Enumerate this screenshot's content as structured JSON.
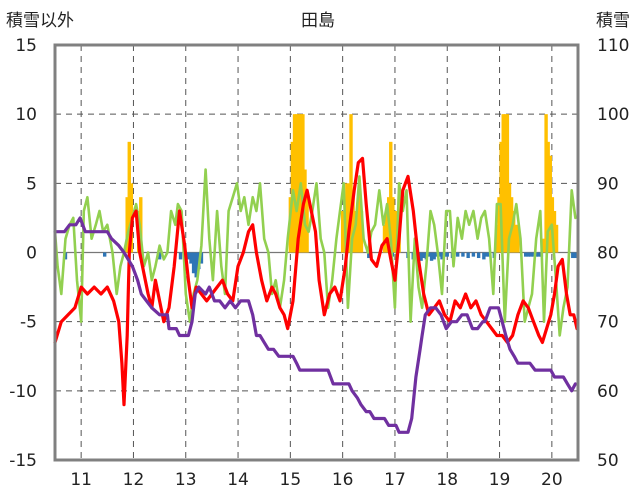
{
  "chart_data": {
    "type": "line",
    "title": "田島",
    "left_axis_title": "積雪以外",
    "right_axis_title": "積雪",
    "xlabel": "",
    "x_tick_labels": [
      "11",
      "12",
      "13",
      "14",
      "15",
      "16",
      "17",
      "18",
      "19",
      "20"
    ],
    "xlim": [
      10.5,
      20.5
    ],
    "left_ylim": [
      -15,
      15
    ],
    "left_yticks": [
      "15",
      "10",
      "5",
      "0",
      "-5",
      "-10",
      "-15"
    ],
    "right_ylim": [
      50,
      110
    ],
    "right_yticks": [
      "110",
      "100",
      "90",
      "80",
      "70",
      "60",
      "50"
    ],
    "grid": true,
    "legend": "none",
    "colors": {
      "snow_depth": "#7030a0",
      "temperature": "#ff0000",
      "humidity_like": "#92d050",
      "snowfall": "#ffc000",
      "precip": "#2e75b6",
      "frame": "#808080",
      "grid": "#555555"
    },
    "series": [
      {
        "key": "temperature",
        "axis": "left",
        "color": "#ff0000",
        "x": [
          10.5,
          10.62,
          10.75,
          10.88,
          11.0,
          11.12,
          11.25,
          11.38,
          11.5,
          11.62,
          11.72,
          11.78,
          11.82,
          11.88,
          11.92,
          11.98,
          12.05,
          12.12,
          12.2,
          12.28,
          12.35,
          12.42,
          12.5,
          12.58,
          12.68,
          12.78,
          12.88,
          12.98,
          13.05,
          13.12,
          13.2,
          13.3,
          13.4,
          13.5,
          13.6,
          13.7,
          13.8,
          13.9,
          14.0,
          14.1,
          14.2,
          14.28,
          14.35,
          14.45,
          14.55,
          14.65,
          14.72,
          14.8,
          14.88,
          14.95,
          15.05,
          15.15,
          15.25,
          15.32,
          15.4,
          15.48,
          15.55,
          15.65,
          15.75,
          15.85,
          15.95,
          16.05,
          16.12,
          16.22,
          16.3,
          16.38,
          16.45,
          16.55,
          16.65,
          16.75,
          16.85,
          16.92,
          17.0,
          17.08,
          17.15,
          17.25,
          17.35,
          17.45,
          17.55,
          17.65,
          17.75,
          17.85,
          17.95,
          18.05,
          18.15,
          18.25,
          18.35,
          18.45,
          18.55,
          18.65,
          18.75,
          18.85,
          18.95,
          19.05,
          19.15,
          19.25,
          19.35,
          19.45,
          19.55,
          19.65,
          19.75,
          19.82,
          19.9,
          19.98,
          20.05,
          20.12,
          20.2,
          20.28,
          20.35,
          20.42,
          20.48
        ],
        "values": [
          -6.5,
          -5.0,
          -4.5,
          -4.0,
          -2.5,
          -3.0,
          -2.5,
          -3.0,
          -2.5,
          -3.5,
          -5.0,
          -8.0,
          -11.0,
          -6.0,
          0.0,
          2.5,
          3.0,
          0.0,
          -1.5,
          -3.0,
          -4.0,
          -2.0,
          -3.5,
          -5.0,
          -4.0,
          -1.0,
          3.0,
          0.5,
          -2.0,
          -4.0,
          -2.5,
          -3.0,
          -3.5,
          -3.0,
          -2.5,
          -2.0,
          -3.0,
          -3.5,
          -1.0,
          0.0,
          1.5,
          2.0,
          0.0,
          -2.0,
          -3.5,
          -2.5,
          -3.0,
          -4.0,
          -4.5,
          -5.5,
          -3.5,
          1.0,
          3.5,
          4.5,
          3.0,
          1.5,
          -2.0,
          -4.5,
          -3.0,
          -2.5,
          -3.5,
          -1.0,
          1.5,
          4.5,
          6.5,
          6.8,
          3.5,
          -0.5,
          -1.0,
          0.5,
          1.0,
          -0.5,
          -2.0,
          1.0,
          4.5,
          5.5,
          3.0,
          -0.5,
          -3.0,
          -4.5,
          -4.0,
          -3.5,
          -4.5,
          -5.0,
          -3.5,
          -4.0,
          -3.0,
          -4.0,
          -3.5,
          -4.5,
          -5.0,
          -5.5,
          -6.0,
          -6.0,
          -6.5,
          -6.0,
          -4.5,
          -3.5,
          -4.0,
          -5.0,
          -6.0,
          -6.5,
          -5.5,
          -4.5,
          -3.0,
          -1.0,
          -0.5,
          -3.0,
          -4.5,
          -4.5,
          -5.5
        ]
      },
      {
        "key": "humidity_like",
        "axis": "left",
        "color": "#92d050",
        "x": [
          10.5,
          10.55,
          10.62,
          10.7,
          10.78,
          10.85,
          10.92,
          11.0,
          11.05,
          11.12,
          11.2,
          11.28,
          11.35,
          11.42,
          11.5,
          11.6,
          11.68,
          11.75,
          11.82,
          11.9,
          11.98,
          12.05,
          12.12,
          12.2,
          12.28,
          12.35,
          12.42,
          12.5,
          12.58,
          12.65,
          12.72,
          12.8,
          12.85,
          12.92,
          13.0,
          13.08,
          13.15,
          13.22,
          13.3,
          13.38,
          13.45,
          13.52,
          13.6,
          13.68,
          13.75,
          13.82,
          13.9,
          13.98,
          14.05,
          14.12,
          14.2,
          14.28,
          14.35,
          14.42,
          14.5,
          14.58,
          14.65,
          14.72,
          14.8,
          14.88,
          14.95,
          15.05,
          15.12,
          15.2,
          15.28,
          15.35,
          15.42,
          15.5,
          15.58,
          15.65,
          15.72,
          15.8,
          15.88,
          15.95,
          16.02,
          16.1,
          16.18,
          16.25,
          16.32,
          16.4,
          16.48,
          16.55,
          16.62,
          16.7,
          16.78,
          16.85,
          16.92,
          17.0,
          17.08,
          17.15,
          17.22,
          17.3,
          17.38,
          17.45,
          17.52,
          17.6,
          17.68,
          17.75,
          17.82,
          17.9,
          17.98,
          18.05,
          18.12,
          18.2,
          18.28,
          18.35,
          18.42,
          18.5,
          18.58,
          18.65,
          18.72,
          18.8,
          18.88,
          18.95,
          19.02,
          19.1,
          19.18,
          19.25,
          19.32,
          19.4,
          19.48,
          19.55,
          19.62,
          19.7,
          19.78,
          19.85,
          19.92,
          20.0,
          20.08,
          20.15,
          20.22,
          20.3,
          20.38,
          20.45
        ],
        "values": [
          1.5,
          -1.0,
          -3.0,
          1.0,
          2.0,
          2.5,
          -2.0,
          -5.0,
          3.0,
          4.0,
          1.0,
          2.0,
          3.0,
          1.5,
          2.0,
          0.0,
          -3.0,
          -1.0,
          0.0,
          1.5,
          2.5,
          3.5,
          2.0,
          -1.0,
          0.0,
          -2.0,
          -1.0,
          0.5,
          -0.5,
          0.0,
          3.0,
          2.0,
          3.5,
          3.0,
          -3.0,
          -5.0,
          -3.0,
          -2.0,
          0.5,
          6.0,
          1.0,
          -2.0,
          3.0,
          -1.0,
          -3.0,
          3.0,
          4.0,
          5.0,
          3.0,
          4.0,
          2.0,
          4.0,
          3.0,
          5.0,
          1.0,
          0.0,
          -3.0,
          -2.0,
          -4.0,
          -2.0,
          1.0,
          4.5,
          3.0,
          5.0,
          2.0,
          1.5,
          3.0,
          5.0,
          1.0,
          0.0,
          -4.0,
          -2.0,
          1.0,
          3.0,
          5.0,
          -4.0,
          1.0,
          2.0,
          5.5,
          1.0,
          0.0,
          1.5,
          2.0,
          4.5,
          2.0,
          3.5,
          1.0,
          -4.0,
          5.0,
          3.0,
          4.5,
          -5.0,
          1.0,
          -2.5,
          -4.0,
          -1.0,
          3.0,
          2.0,
          0.0,
          -3.0,
          3.0,
          3.0,
          -1.0,
          2.5,
          1.0,
          3.0,
          2.0,
          3.0,
          1.0,
          2.5,
          3.0,
          1.0,
          -3.0,
          3.5,
          3.5,
          -5.0,
          1.0,
          2.0,
          3.5,
          1.0,
          -5.0,
          -4.0,
          -3.0,
          1.0,
          3.0,
          -5.0,
          1.5,
          2.0,
          -2.0,
          -6.0,
          -4.0,
          -2.5,
          4.5,
          2.5
        ]
      },
      {
        "key": "snow_depth",
        "axis": "right",
        "color": "#7030a0",
        "x": [
          10.5,
          10.68,
          10.78,
          10.9,
          10.98,
          11.08,
          11.5,
          11.58,
          11.72,
          11.82,
          11.9,
          11.98,
          12.08,
          12.15,
          12.25,
          12.35,
          12.5,
          12.65,
          12.68,
          12.78,
          12.82,
          12.88,
          12.95,
          13.05,
          13.12,
          13.18,
          13.25,
          13.38,
          13.45,
          13.55,
          13.65,
          13.75,
          13.85,
          13.95,
          14.05,
          14.12,
          14.2,
          14.28,
          14.35,
          14.42,
          14.5,
          14.58,
          14.68,
          14.78,
          14.88,
          14.95,
          15.05,
          15.12,
          15.18,
          15.3,
          15.42,
          15.55,
          15.65,
          15.72,
          15.82,
          15.9,
          15.98,
          16.05,
          16.12,
          16.18,
          16.28,
          16.35,
          16.45,
          16.52,
          16.6,
          16.7,
          16.8,
          16.88,
          16.95,
          17.02,
          17.08,
          17.12,
          17.18,
          17.25,
          17.32,
          17.4,
          17.48,
          17.52,
          17.58,
          17.68,
          17.78,
          17.88,
          17.98,
          18.08,
          18.18,
          18.28,
          18.38,
          18.48,
          18.58,
          18.68,
          18.72,
          18.82,
          18.9,
          18.98,
          19.05,
          19.12,
          19.2,
          19.28,
          19.35,
          19.42,
          19.52,
          19.58,
          19.68,
          19.78,
          19.88,
          19.98,
          20.05,
          20.12,
          20.18,
          20.22,
          20.3,
          20.38,
          20.45
        ],
        "values": [
          83,
          83,
          84,
          84,
          85,
          83,
          83,
          82,
          81,
          80,
          79,
          78,
          76,
          74,
          73,
          72,
          71,
          71,
          69,
          69,
          69,
          68,
          68,
          68,
          70,
          74,
          75,
          74,
          75,
          73,
          73,
          72,
          73,
          72,
          73,
          73,
          73,
          71,
          68,
          68,
          67,
          66,
          66,
          65,
          65,
          65,
          65,
          64,
          63,
          63,
          63,
          63,
          63,
          63,
          61,
          61,
          61,
          61,
          61,
          60,
          59,
          58,
          57,
          57,
          56,
          56,
          56,
          55,
          55,
          55,
          54,
          54,
          54,
          54,
          56,
          62,
          66,
          68,
          71,
          72,
          72,
          71,
          69,
          70,
          70,
          71,
          71,
          69,
          69,
          70,
          70,
          72,
          72,
          72,
          70,
          68,
          66,
          65,
          64,
          64,
          64,
          64,
          63,
          63,
          63,
          63,
          62,
          62,
          62,
          62,
          61,
          60,
          61
        ]
      }
    ],
    "bars": [
      {
        "key": "snowfall",
        "axis": "left",
        "color": "#ffc000",
        "x": [
          11.88,
          11.92,
          11.96,
          12.1,
          12.14,
          15.0,
          15.04,
          15.08,
          15.12,
          15.16,
          15.2,
          15.24,
          15.28,
          15.32,
          16.0,
          16.04,
          16.08,
          16.12,
          16.16,
          16.2,
          16.24,
          16.28,
          16.32,
          16.36,
          16.8,
          16.84,
          16.88,
          16.92,
          16.96,
          17.0,
          17.04,
          17.08,
          18.95,
          18.99,
          19.03,
          19.07,
          19.11,
          19.15,
          19.19,
          19.23,
          19.27,
          19.31,
          19.35,
          19.85,
          19.89,
          19.93,
          19.97,
          20.01,
          20.05,
          20.09
        ],
        "values": [
          4.0,
          8.0,
          5.0,
          3.0,
          4.0,
          4.0,
          8.0,
          10.0,
          10.0,
          10.0,
          10.0,
          10.0,
          6.0,
          4.0,
          3.0,
          3.0,
          5.0,
          5.0,
          10.0,
          4.0,
          3.0,
          3.0,
          5.0,
          3.0,
          2.0,
          3.0,
          4.0,
          8.0,
          4.0,
          3.0,
          3.0,
          4.0,
          2.0,
          4.0,
          8.0,
          10.0,
          10.0,
          10.0,
          5.0,
          4.0,
          3.0,
          2.0,
          2.0,
          1.0,
          10.0,
          8.0,
          7.0,
          4.0,
          3.0,
          2.0
        ]
      },
      {
        "key": "precip",
        "axis": "left",
        "color": "#2e75b6",
        "x": [
          10.7,
          11.45,
          12.5,
          12.9,
          13.05,
          13.1,
          13.15,
          13.2,
          13.25,
          13.3,
          16.5,
          16.95,
          17.25,
          17.35,
          17.4,
          17.45,
          17.5,
          17.55,
          17.6,
          17.65,
          17.7,
          17.75,
          17.8,
          17.85,
          17.9,
          17.95,
          18.0,
          18.1,
          18.2,
          18.3,
          18.4,
          18.5,
          18.6,
          18.7,
          18.75,
          18.8,
          18.9,
          19.5,
          19.55,
          19.6,
          19.65,
          19.7,
          19.75,
          19.8,
          20.4,
          20.45
        ],
        "values": [
          -0.5,
          -0.3,
          -0.5,
          -0.5,
          -0.5,
          -0.8,
          -1.5,
          -1.8,
          -1.2,
          -0.8,
          -0.4,
          -0.3,
          -0.4,
          -0.5,
          -0.3,
          -0.8,
          -0.6,
          -0.4,
          -0.5,
          -0.3,
          -0.6,
          -0.5,
          -0.3,
          -0.3,
          -0.5,
          -0.3,
          -0.3,
          -0.4,
          -0.3,
          -0.3,
          -0.4,
          -0.3,
          -0.4,
          -0.5,
          -0.3,
          -0.3,
          -0.4,
          -0.3,
          -0.3,
          -0.3,
          -0.3,
          -0.3,
          -0.3,
          -0.3,
          -0.4,
          -0.4
        ]
      }
    ]
  }
}
